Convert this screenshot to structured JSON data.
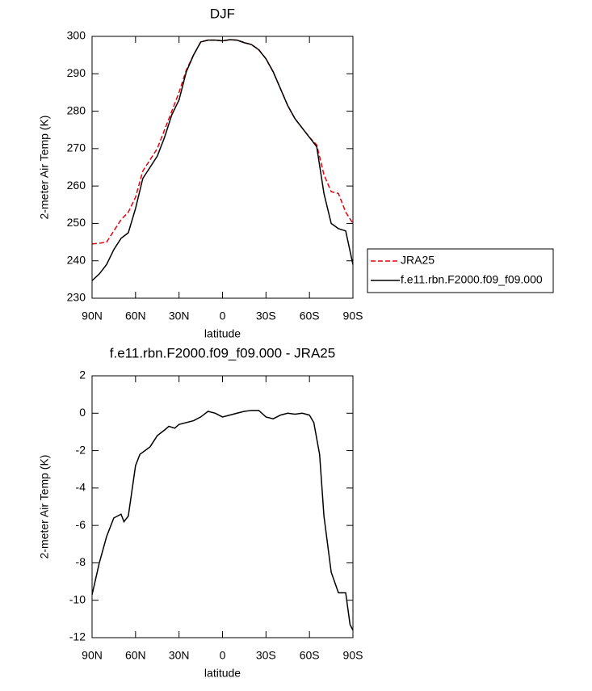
{
  "chart_data": [
    {
      "type": "line",
      "title": "DJF",
      "xlabel": "latitude",
      "ylabel": "2-meter Air Temp (K)",
      "x": [
        90,
        85,
        80,
        75,
        70,
        65,
        60,
        55,
        50,
        45,
        40,
        35,
        30,
        25,
        20,
        15,
        10,
        5,
        0,
        -5,
        -10,
        -15,
        -20,
        -25,
        -30,
        -35,
        -40,
        -45,
        -50,
        -55,
        -60,
        -65,
        -70,
        -75,
        -80,
        -85,
        -90
      ],
      "series": [
        {
          "name": "JRA25",
          "color": "#e8000b",
          "dash": true,
          "values": [
            244.5,
            244.7,
            245,
            248,
            251,
            253,
            257,
            264,
            267,
            270,
            275,
            280,
            285,
            291,
            295,
            298.5,
            299,
            299,
            298.8,
            299.1,
            299,
            298.4,
            297.8,
            296.5,
            294,
            290.5,
            286,
            281.5,
            278,
            275.5,
            273,
            271,
            263,
            258.5,
            258,
            253,
            250
          ]
        },
        {
          "name": "f.e11.rbn.F2000.f09_f09.000",
          "color": "#000000",
          "dash": false,
          "values": [
            234.7,
            236.5,
            239,
            243,
            246,
            247.5,
            254,
            262,
            265,
            268,
            273,
            279,
            283,
            290.5,
            295,
            298.5,
            299,
            299,
            298.8,
            299.1,
            299,
            298.3,
            297.8,
            296.4,
            294,
            290.5,
            286,
            281.5,
            278,
            275.5,
            273,
            270.5,
            258,
            250,
            248.6,
            248,
            239
          ]
        }
      ],
      "xlim": [
        90,
        -90
      ],
      "xticks": [
        {
          "value": 90,
          "label": "90N"
        },
        {
          "value": 60,
          "label": "60N"
        },
        {
          "value": 30,
          "label": "30N"
        },
        0,
        {
          "value": -30,
          "label": "30S"
        },
        {
          "value": -60,
          "label": "60S"
        },
        {
          "value": -90,
          "label": "90S"
        }
      ],
      "ylim": [
        230,
        300
      ],
      "yticks": [
        230,
        240,
        250,
        260,
        270,
        280,
        290,
        300
      ]
    },
    {
      "type": "line",
      "title": "f.e11.rbn.F2000.f09_f09.000 - JRA25",
      "xlabel": "latitude",
      "ylabel": "2-meter Air Temp (K)",
      "x": [
        90,
        85,
        80,
        75,
        70,
        68,
        65,
        60,
        57,
        50,
        45,
        40,
        37,
        33,
        30,
        20,
        15,
        10,
        5,
        0,
        -5,
        -10,
        -15,
        -20,
        -25,
        -30,
        -35,
        -40,
        -45,
        -50,
        -55,
        -60,
        -63,
        -67,
        -70,
        -75,
        -80,
        -85,
        -88,
        -90
      ],
      "color": "#000000",
      "values": [
        -9.7,
        -8,
        -6.6,
        -5.6,
        -5.4,
        -5.8,
        -5.5,
        -2.8,
        -2.2,
        -1.8,
        -1.2,
        -0.9,
        -0.7,
        -0.8,
        -0.6,
        -0.4,
        -0.2,
        0.1,
        0,
        -0.2,
        -0.1,
        0,
        0.1,
        0.15,
        0.15,
        -0.2,
        -0.3,
        -0.1,
        0,
        -0.05,
        0,
        -0.1,
        -0.5,
        -2.2,
        -5.5,
        -8.5,
        -9.6,
        -9.6,
        -11.3,
        -11.6
      ],
      "xlim": [
        90,
        -90
      ],
      "xticks": [
        {
          "value": 90,
          "label": "90N"
        },
        {
          "value": 60,
          "label": "60N"
        },
        {
          "value": 30,
          "label": "30N"
        },
        0,
        {
          "value": -30,
          "label": "30S"
        },
        {
          "value": -60,
          "label": "60S"
        },
        {
          "value": -90,
          "label": "90S"
        }
      ],
      "ylim": [
        -12,
        2
      ],
      "yticks": [
        -12,
        -10,
        -8,
        -6,
        -4,
        -2,
        0,
        2
      ]
    }
  ]
}
